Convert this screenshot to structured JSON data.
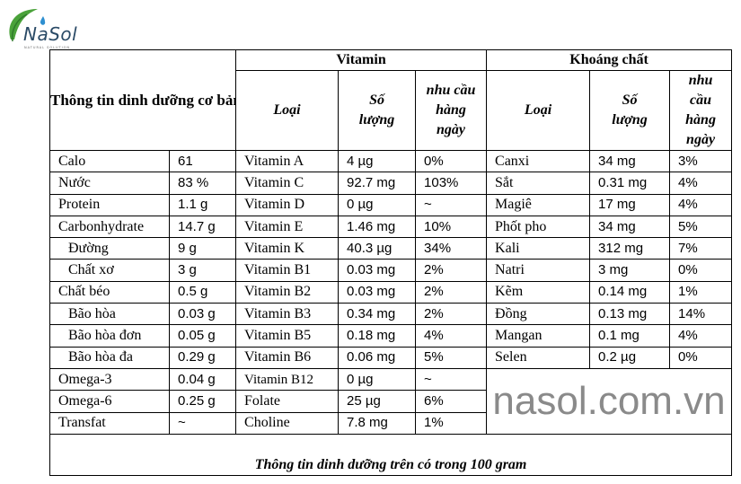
{
  "logo": {
    "text": "NaSol",
    "tagline": "NATURAL SOLUTION",
    "colors": {
      "leaf": "#4aa23a",
      "drop": "#2e8fd0",
      "text": "#2a4a66"
    }
  },
  "header": {
    "basic": "Thông tin dinh dưỡng cơ bản",
    "vitamin": "Vitamin",
    "mineral": "Khoáng chất",
    "type": "Loại",
    "amount": "Số lượng",
    "daily": "nhu cầu hàng ngày"
  },
  "rows": [
    {
      "basic": "Calo",
      "basic_val": "61",
      "vit": "Vitamin A",
      "vit_amt": "4 µg",
      "vit_pct": "0%",
      "min": "Canxi",
      "min_amt": "34 mg",
      "min_pct": "3%"
    },
    {
      "basic": "Nước",
      "basic_val": "83 %",
      "vit": "Vitamin C",
      "vit_amt": "92.7 mg",
      "vit_pct": "103%",
      "min": "Sắt",
      "min_amt": "0.31 mg",
      "min_pct": "4%"
    },
    {
      "basic": "Protein",
      "basic_val": "1.1 g",
      "vit": "Vitamin D",
      "vit_amt": "0 µg",
      "vit_pct": "~",
      "min": "Magiê",
      "min_amt": "17 mg",
      "min_pct": "4%"
    },
    {
      "basic": "Carbonhydrate",
      "basic_val": "14.7 g",
      "vit": "Vitamin E",
      "vit_amt": "1.46 mg",
      "vit_pct": "10%",
      "min": "Phốt pho",
      "min_amt": "34 mg",
      "min_pct": "5%"
    },
    {
      "basic": "Đường",
      "indent": 1,
      "basic_val": "9 g",
      "vit": "Vitamin K",
      "vit_amt": "40.3 µg",
      "vit_pct": "34%",
      "min": "Kali",
      "min_amt": "312 mg",
      "min_pct": "7%"
    },
    {
      "basic": "Chất xơ",
      "indent": 2,
      "basic_val": "3 g",
      "vit": "Vitamin B1",
      "vit_amt": "0.03 mg",
      "vit_pct": "2%",
      "min": "Natri",
      "min_amt": "3 mg",
      "min_pct": "0%"
    },
    {
      "basic": "Chất béo",
      "basic_val": "0.5 g",
      "vit": "Vitamin B2",
      "vit_amt": "0.03 mg",
      "vit_pct": "2%",
      "min": "Kẽm",
      "min_amt": "0.14 mg",
      "min_pct": "1%"
    },
    {
      "basic": "Bão hòa",
      "indent": 1,
      "basic_val": "0.03 g",
      "vit": "Vitamin B3",
      "vit_amt": "0.34 mg",
      "vit_pct": "2%",
      "min": "Đồng",
      "min_amt": "0.13 mg",
      "min_pct": "14%"
    },
    {
      "basic": "Bão hòa đơn",
      "indent": 1,
      "basic_val": "0.05 g",
      "vit": "Vitamin B5",
      "vit_amt": "0.18 mg",
      "vit_pct": "4%",
      "min": "Mangan",
      "min_amt": "0.1 mg",
      "min_pct": "4%"
    },
    {
      "basic": "Bão hòa đa",
      "indent": 1,
      "basic_val": "0.29 g",
      "vit": "Vitamin B6",
      "vit_amt": "0.06 mg",
      "vit_pct": "5%",
      "min": "Selen",
      "min_amt": "0.2 µg",
      "min_pct": "0%"
    },
    {
      "basic": "Omega-3",
      "basic_val": "0.04 g",
      "vit": "Vitamin B12",
      "vit_amt": "0 µg",
      "vit_pct": "~"
    },
    {
      "basic": "Omega-6",
      "basic_val": "0.25 g",
      "vit": "Folate",
      "vit_amt": "25 µg",
      "vit_pct": "6%"
    },
    {
      "basic": "Transfat",
      "basic_val": "~",
      "vit": "Choline",
      "vit_amt": "7.8 mg",
      "vit_pct": "1%"
    }
  ],
  "watermark": "nasol.com.vn",
  "footer": "Thông tin dinh dưỡng trên có trong 100 gram"
}
